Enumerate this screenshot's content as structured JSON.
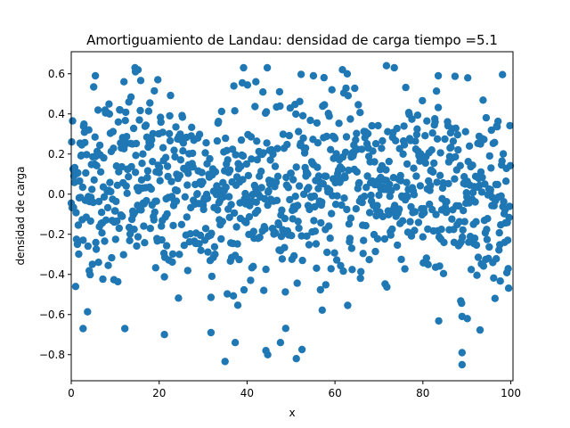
{
  "chart_data": {
    "type": "scatter",
    "title": "Amortiguamiento de Landau: densidad de carga  tiempo =5.1",
    "xlabel": "x",
    "ylabel": "densidad de carga",
    "xlim": [
      0,
      100.5
    ],
    "ylim": [
      -0.93,
      0.71
    ],
    "xticks": [
      0,
      20,
      40,
      60,
      80,
      100
    ],
    "yticks": [
      -0.8,
      -0.6,
      -0.4,
      -0.2,
      0.0,
      0.2,
      0.4,
      0.6
    ],
    "xtick_labels": [
      "0",
      "20",
      "40",
      "60",
      "80",
      "100"
    ],
    "ytick_labels": [
      "−0.8",
      "−0.6",
      "−0.4",
      "−0.2",
      "0.0",
      "0.2",
      "0.4",
      "0.6"
    ],
    "grid": false,
    "marker_color": "#1f77b4",
    "n_points": 1000,
    "x_spacing": 0.1,
    "highlights": [
      {
        "x": 5.5,
        "y": 0.59
      },
      {
        "x": 14.6,
        "y": 0.61
      },
      {
        "x": 15.2,
        "y": 0.62
      },
      {
        "x": 71.7,
        "y": 0.64
      },
      {
        "x": 83.5,
        "y": 0.59
      },
      {
        "x": 55.1,
        "y": 0.59
      },
      {
        "x": 2.7,
        "y": -0.67
      },
      {
        "x": 12.2,
        "y": -0.67
      },
      {
        "x": 21.2,
        "y": -0.7
      },
      {
        "x": 31.8,
        "y": -0.69
      },
      {
        "x": 37.3,
        "y": -0.74
      },
      {
        "x": 44.3,
        "y": -0.78
      },
      {
        "x": 44.7,
        "y": -0.8
      },
      {
        "x": 47.6,
        "y": -0.74
      },
      {
        "x": 51.2,
        "y": -0.82
      },
      {
        "x": 88.9,
        "y": -0.79
      },
      {
        "x": 88.9,
        "y": -0.85
      },
      {
        "x": 90.1,
        "y": -0.62
      },
      {
        "x": 42.0,
        "y": 0.56
      },
      {
        "x": 12.0,
        "y": 0.56
      }
    ]
  }
}
